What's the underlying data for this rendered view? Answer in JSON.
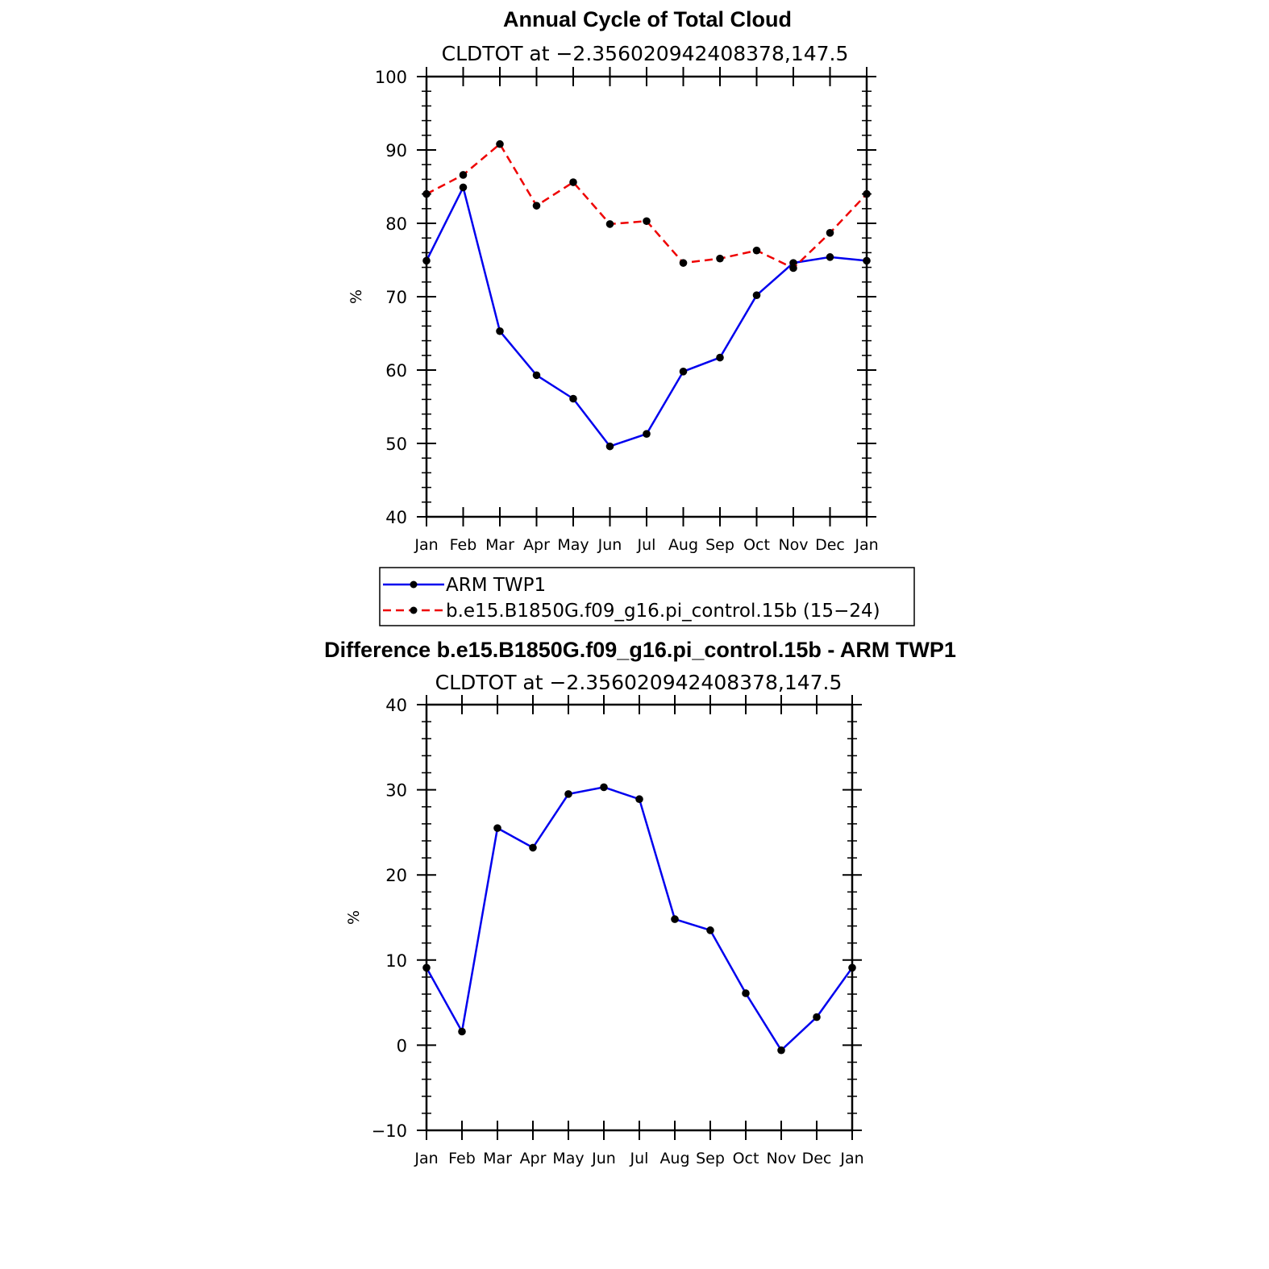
{
  "chart_data": [
    {
      "type": "line",
      "title": "Annual Cycle of Total Cloud",
      "subtitle": "CLDTOT at −2.356020942408378,147.5",
      "ylabel": "%",
      "ylim": [
        40,
        100
      ],
      "yticks": [
        40,
        50,
        60,
        70,
        80,
        90,
        100
      ],
      "categories": [
        "Jan",
        "Feb",
        "Mar",
        "Apr",
        "May",
        "Jun",
        "Jul",
        "Aug",
        "Sep",
        "Oct",
        "Nov",
        "Dec",
        "Jan"
      ],
      "series": [
        {
          "name": "ARM TWP1",
          "color": "#0000ee",
          "dash": "solid",
          "values": [
            74.9,
            84.9,
            65.3,
            59.3,
            56.1,
            49.6,
            51.3,
            59.8,
            61.7,
            70.2,
            74.6,
            75.4,
            74.9
          ]
        },
        {
          "name": "b.e15.B1850G.f09_g16.pi_control.15b (15−24)",
          "color": "#ee0000",
          "dash": "dashed",
          "values": [
            84.0,
            86.6,
            90.8,
            82.4,
            85.6,
            79.9,
            80.3,
            74.6,
            75.2,
            76.3,
            73.9,
            78.7,
            84.0
          ]
        }
      ],
      "legend": "bottom"
    },
    {
      "type": "line",
      "title": "Difference b.e15.B1850G.f09_g16.pi_control.15b - ARM TWP1",
      "subtitle": "CLDTOT at −2.356020942408378,147.5",
      "ylabel": "%",
      "ylim": [
        -10,
        40
      ],
      "yticks": [
        -10,
        0,
        10,
        20,
        30,
        40
      ],
      "ytick_labels": [
        "−10",
        "0",
        "10",
        "20",
        "30",
        "40"
      ],
      "categories": [
        "Jan",
        "Feb",
        "Mar",
        "Apr",
        "May",
        "Jun",
        "Jul",
        "Aug",
        "Sep",
        "Oct",
        "Nov",
        "Dec",
        "Jan"
      ],
      "series": [
        {
          "name": "Difference",
          "color": "#0000ee",
          "dash": "solid",
          "values": [
            9.1,
            1.6,
            25.5,
            23.2,
            29.5,
            30.3,
            28.9,
            14.8,
            13.5,
            6.1,
            -0.6,
            3.3,
            9.1
          ]
        }
      ]
    }
  ]
}
